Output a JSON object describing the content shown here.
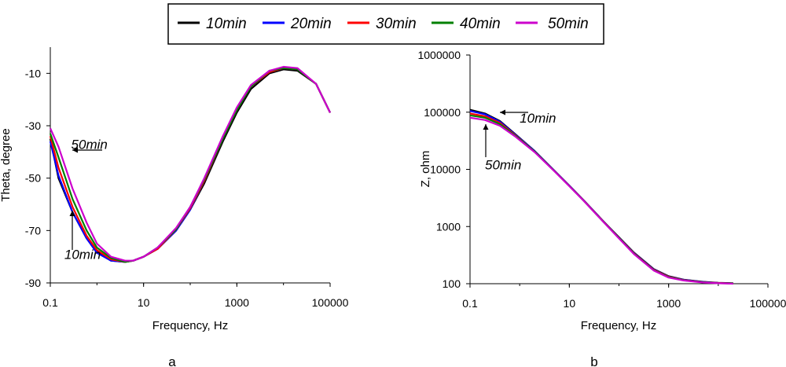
{
  "legend": {
    "entries": [
      {
        "label": "10min",
        "color": "#000000"
      },
      {
        "label": "20min",
        "color": "#0000ff"
      },
      {
        "label": "30min",
        "color": "#ff0000"
      },
      {
        "label": "40min",
        "color": "#008000"
      },
      {
        "label": "50min",
        "color": "#cc00cc"
      }
    ]
  },
  "chart_data": [
    {
      "type": "line",
      "panel": "a",
      "title": "",
      "xlabel": "Frequency, Hz",
      "ylabel": "Theta, degree",
      "xscale": "log",
      "xlim": [
        0.1,
        100000
      ],
      "ylim": [
        -90,
        0
      ],
      "xticks": [
        0.1,
        10,
        1000,
        100000
      ],
      "xtick_labels": [
        "0.1",
        "10",
        "1000",
        "100000"
      ],
      "yticks": [
        -10,
        -30,
        -50,
        -70,
        -90
      ],
      "ytick_labels": [
        "-10",
        "-30",
        "-50",
        "-70",
        "-90"
      ],
      "grid": false,
      "x": [
        0.1,
        0.15,
        0.3,
        0.6,
        1,
        2,
        4,
        6,
        10,
        20,
        50,
        100,
        200,
        500,
        1000,
        2000,
        5000,
        10000,
        20000,
        50000,
        100000
      ],
      "series": [
        {
          "name": "10min",
          "color": "#000000",
          "values": [
            -35,
            -50,
            -63,
            -73,
            -78,
            -81.5,
            -82,
            -81.5,
            -80,
            -77,
            -70,
            -62,
            -52,
            -36,
            -25,
            -16,
            -10,
            -8.5,
            -9,
            -14,
            -25
          ]
        },
        {
          "name": "20min",
          "color": "#0000ff",
          "values": [
            -36,
            -49,
            -63,
            -73,
            -78.5,
            -81.5,
            -82,
            -81.5,
            -80,
            -77,
            -70,
            -62,
            -51,
            -35,
            -24,
            -15,
            -9.5,
            -8,
            -8.5,
            -14,
            -25
          ]
        },
        {
          "name": "30min",
          "color": "#ff0000",
          "values": [
            -34,
            -46,
            -61,
            -72,
            -77.5,
            -81,
            -82,
            -81.5,
            -80,
            -77,
            -69.5,
            -61.5,
            -51,
            -35,
            -24,
            -15,
            -9.5,
            -8,
            -8.5,
            -14,
            -25
          ]
        },
        {
          "name": "40min",
          "color": "#008000",
          "values": [
            -33,
            -42,
            -58,
            -70,
            -76.5,
            -80.5,
            -82,
            -81.5,
            -80,
            -76.5,
            -69.5,
            -61,
            -50.5,
            -35,
            -24,
            -15,
            -9,
            -8,
            -8.5,
            -14,
            -25
          ]
        },
        {
          "name": "50min",
          "color": "#cc00cc",
          "values": [
            -31,
            -38,
            -54,
            -67,
            -75,
            -80,
            -81.5,
            -81.5,
            -80,
            -76.5,
            -69,
            -61,
            -50,
            -34,
            -23,
            -14.5,
            -9,
            -7.5,
            -8,
            -14,
            -25
          ]
        }
      ],
      "annotations": [
        {
          "text": "50min",
          "at": [
            0.28,
            -37
          ]
        },
        {
          "text": "10min",
          "at": [
            0.2,
            -79
          ]
        }
      ]
    },
    {
      "type": "line",
      "panel": "b",
      "title": "",
      "xlabel": "Frequency, Hz",
      "ylabel": "Z, ohm",
      "xscale": "log",
      "yscale": "log",
      "xlim": [
        0.1,
        100000
      ],
      "ylim": [
        100,
        1000000
      ],
      "xticks": [
        0.1,
        10,
        1000,
        100000
      ],
      "xtick_labels": [
        "0.1",
        "10",
        "1000",
        "100000"
      ],
      "yticks": [
        1000000,
        100000,
        10000,
        1000,
        100
      ],
      "ytick_labels": [
        "1000000",
        "100000",
        "10000",
        "1000",
        "100"
      ],
      "grid": false,
      "x": [
        0.1,
        0.2,
        0.4,
        0.8,
        2,
        5,
        10,
        20,
        50,
        100,
        200,
        500,
        1000,
        2000,
        5000,
        10000,
        20000
      ],
      "series": [
        {
          "name": "10min",
          "color": "#000000",
          "values": [
            110000,
            95000,
            70000,
            42000,
            21000,
            9500,
            5200,
            2800,
            1200,
            650,
            350,
            180,
            135,
            118,
            108,
            104,
            102
          ]
        },
        {
          "name": "20min",
          "color": "#0000ff",
          "values": [
            105000,
            92000,
            68000,
            41000,
            21000,
            9500,
            5200,
            2800,
            1200,
            640,
            345,
            178,
            133,
            117,
            107,
            103,
            101
          ]
        },
        {
          "name": "30min",
          "color": "#ff0000",
          "values": [
            95000,
            85000,
            65000,
            40000,
            20500,
            9400,
            5150,
            2780,
            1190,
            635,
            340,
            175,
            132,
            116,
            106,
            103,
            101
          ]
        },
        {
          "name": "40min",
          "color": "#008000",
          "values": [
            88000,
            80000,
            62000,
            39000,
            20500,
            9400,
            5150,
            2770,
            1180,
            630,
            335,
            172,
            130,
            115,
            106,
            102,
            101
          ]
        },
        {
          "name": "50min",
          "color": "#cc00cc",
          "values": [
            80000,
            73000,
            58000,
            38000,
            20000,
            9300,
            5100,
            2760,
            1170,
            620,
            330,
            170,
            128,
            114,
            105,
            102,
            100
          ]
        }
      ],
      "annotations": [
        {
          "text": "10min",
          "at": [
            1.0,
            80000
          ]
        },
        {
          "text": "50min",
          "at": [
            0.2,
            12000
          ]
        }
      ]
    }
  ],
  "panel_labels": [
    "a",
    "b"
  ]
}
